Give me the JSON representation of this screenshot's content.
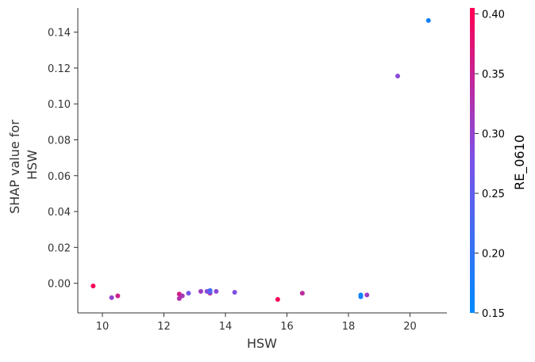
{
  "chart_data": {
    "type": "scatter",
    "title": "",
    "xlabel": "HSW",
    "ylabel_lines": [
      "SHAP value for",
      "HSW"
    ],
    "xlim": [
      9.2,
      21.2
    ],
    "ylim": [
      -0.0165,
      0.1535
    ],
    "xticks": [
      10,
      12,
      14,
      16,
      18,
      20
    ],
    "yticks": [
      0.0,
      0.02,
      0.04,
      0.06,
      0.08,
      0.1,
      0.12,
      0.14
    ],
    "ytick_labels": [
      "0.00",
      "0.02",
      "0.04",
      "0.06",
      "0.08",
      "0.10",
      "0.12",
      "0.14"
    ],
    "grid": false,
    "colorbar": {
      "label": "RE_0610",
      "range": [
        0.15,
        0.405
      ],
      "ticks": [
        0.15,
        0.2,
        0.25,
        0.3,
        0.35,
        0.4
      ],
      "tick_labels": [
        "0.15",
        "0.20",
        "0.25",
        "0.30",
        "0.35",
        "0.40"
      ],
      "low_color": "#008afb",
      "high_color": "#ff0052"
    },
    "points": [
      {
        "x": 9.7,
        "y": -0.0015,
        "c": 0.4
      },
      {
        "x": 10.3,
        "y": -0.008,
        "c": 0.3
      },
      {
        "x": 10.5,
        "y": -0.007,
        "c": 0.36
      },
      {
        "x": 12.5,
        "y": -0.006,
        "c": 0.36
      },
      {
        "x": 12.5,
        "y": -0.0085,
        "c": 0.33
      },
      {
        "x": 12.6,
        "y": -0.007,
        "c": 0.32
      },
      {
        "x": 12.8,
        "y": -0.0055,
        "c": 0.27
      },
      {
        "x": 13.2,
        "y": -0.0045,
        "c": 0.31
      },
      {
        "x": 13.4,
        "y": -0.0045,
        "c": 0.29
      },
      {
        "x": 13.5,
        "y": -0.004,
        "c": 0.22
      },
      {
        "x": 13.5,
        "y": -0.0055,
        "c": 0.36
      },
      {
        "x": 13.5,
        "y": -0.005,
        "c": 0.24
      },
      {
        "x": 13.7,
        "y": -0.0045,
        "c": 0.29
      },
      {
        "x": 14.3,
        "y": -0.005,
        "c": 0.28
      },
      {
        "x": 15.7,
        "y": -0.009,
        "c": 0.4
      },
      {
        "x": 16.5,
        "y": -0.0055,
        "c": 0.34
      },
      {
        "x": 18.4,
        "y": -0.0065,
        "c": 0.16
      },
      {
        "x": 18.4,
        "y": -0.0075,
        "c": 0.17
      },
      {
        "x": 18.6,
        "y": -0.0065,
        "c": 0.31
      },
      {
        "x": 19.6,
        "y": 0.1155,
        "c": 0.29
      },
      {
        "x": 20.6,
        "y": 0.1465,
        "c": 0.17
      }
    ]
  }
}
